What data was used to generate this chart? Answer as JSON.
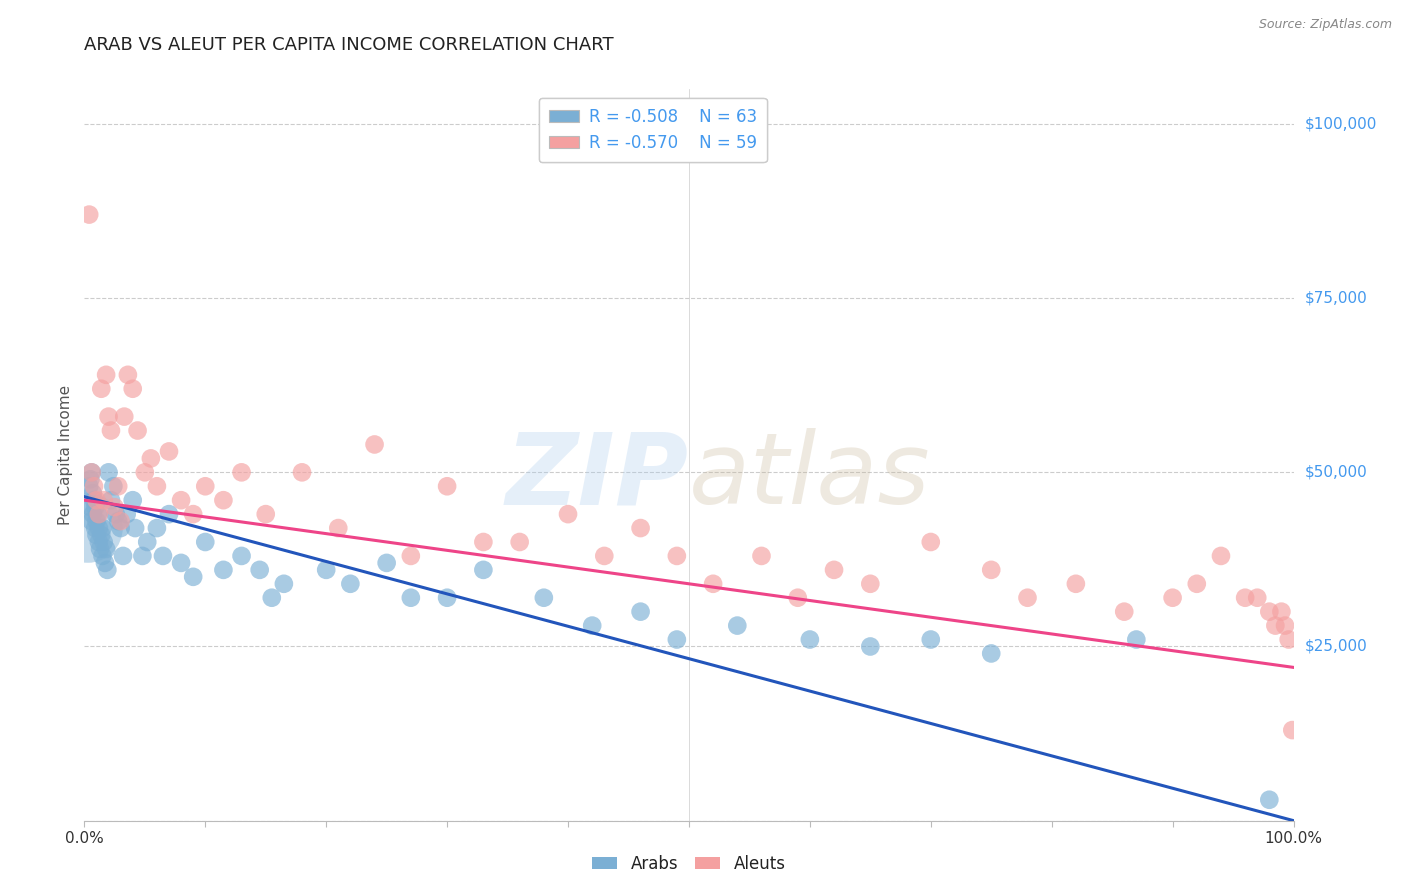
{
  "title": "ARAB VS ALEUT PER CAPITA INCOME CORRELATION CHART",
  "source": "Source: ZipAtlas.com",
  "ylabel": "Per Capita Income",
  "xlim": [
    0,
    1.0
  ],
  "ylim": [
    0,
    105000
  ],
  "yticks_right": [
    0,
    25000,
    50000,
    75000,
    100000
  ],
  "yticklabels_right": [
    "",
    "$25,000",
    "$50,000",
    "$75,000",
    "$100,000"
  ],
  "arab_color": "#7BAFD4",
  "aleut_color": "#F4A0A0",
  "arab_line_color": "#2255BB",
  "aleut_line_color": "#EE4488",
  "background_color": "#FFFFFF",
  "grid_color": "#CCCCCC",
  "right_axis_color": "#4499EE",
  "title_color": "#222222",
  "axis_label_color": "#555555",
  "legend_arab_label": "R = -0.508    N = 63",
  "legend_aleut_label": "R = -0.570    N = 59",
  "legend_bottom_arab": "Arabs",
  "legend_bottom_aleut": "Aleuts",
  "blue_line_x0": 0.0,
  "blue_line_y0": 46500,
  "blue_line_x1": 1.0,
  "blue_line_y1": 0,
  "pink_line_x0": 0.0,
  "pink_line_y0": 46000,
  "pink_line_x1": 1.0,
  "pink_line_y1": 22000,
  "arab_x": [
    0.004,
    0.005,
    0.005,
    0.006,
    0.006,
    0.007,
    0.007,
    0.008,
    0.009,
    0.009,
    0.01,
    0.01,
    0.011,
    0.012,
    0.012,
    0.013,
    0.014,
    0.015,
    0.015,
    0.016,
    0.017,
    0.018,
    0.019,
    0.02,
    0.022,
    0.024,
    0.026,
    0.028,
    0.03,
    0.032,
    0.035,
    0.04,
    0.042,
    0.048,
    0.052,
    0.06,
    0.065,
    0.07,
    0.08,
    0.09,
    0.1,
    0.115,
    0.13,
    0.145,
    0.155,
    0.165,
    0.2,
    0.22,
    0.25,
    0.27,
    0.3,
    0.33,
    0.38,
    0.42,
    0.46,
    0.49,
    0.54,
    0.6,
    0.65,
    0.7,
    0.75,
    0.87,
    0.98
  ],
  "arab_y": [
    48000,
    49000,
    45000,
    50000,
    43000,
    47000,
    44000,
    46000,
    42000,
    45000,
    43000,
    41000,
    44000,
    40000,
    42000,
    39000,
    41000,
    38000,
    42000,
    40000,
    37000,
    39000,
    36000,
    50000,
    46000,
    48000,
    44000,
    43000,
    42000,
    38000,
    44000,
    46000,
    42000,
    38000,
    40000,
    42000,
    38000,
    44000,
    37000,
    35000,
    40000,
    36000,
    38000,
    36000,
    32000,
    34000,
    36000,
    34000,
    37000,
    32000,
    32000,
    36000,
    32000,
    28000,
    30000,
    26000,
    28000,
    26000,
    25000,
    26000,
    24000,
    26000,
    3000
  ],
  "arab_big_x": [
    0.003
  ],
  "arab_big_y": [
    42000
  ],
  "arab_big_s": [
    2500
  ],
  "aleut_x": [
    0.004,
    0.006,
    0.008,
    0.01,
    0.012,
    0.014,
    0.016,
    0.018,
    0.02,
    0.022,
    0.025,
    0.028,
    0.03,
    0.033,
    0.036,
    0.04,
    0.044,
    0.05,
    0.055,
    0.06,
    0.07,
    0.08,
    0.09,
    0.1,
    0.115,
    0.13,
    0.15,
    0.18,
    0.21,
    0.24,
    0.27,
    0.3,
    0.33,
    0.36,
    0.4,
    0.43,
    0.46,
    0.49,
    0.52,
    0.56,
    0.59,
    0.62,
    0.65,
    0.7,
    0.75,
    0.78,
    0.82,
    0.86,
    0.9,
    0.92,
    0.94,
    0.96,
    0.97,
    0.98,
    0.985,
    0.99,
    0.993,
    0.996,
    0.999
  ],
  "aleut_y": [
    87000,
    50000,
    48000,
    46000,
    44000,
    62000,
    46000,
    64000,
    58000,
    56000,
    45000,
    48000,
    43000,
    58000,
    64000,
    62000,
    56000,
    50000,
    52000,
    48000,
    53000,
    46000,
    44000,
    48000,
    46000,
    50000,
    44000,
    50000,
    42000,
    54000,
    38000,
    48000,
    40000,
    40000,
    44000,
    38000,
    42000,
    38000,
    34000,
    38000,
    32000,
    36000,
    34000,
    40000,
    36000,
    32000,
    34000,
    30000,
    32000,
    34000,
    38000,
    32000,
    32000,
    30000,
    28000,
    30000,
    28000,
    26000,
    13000
  ]
}
